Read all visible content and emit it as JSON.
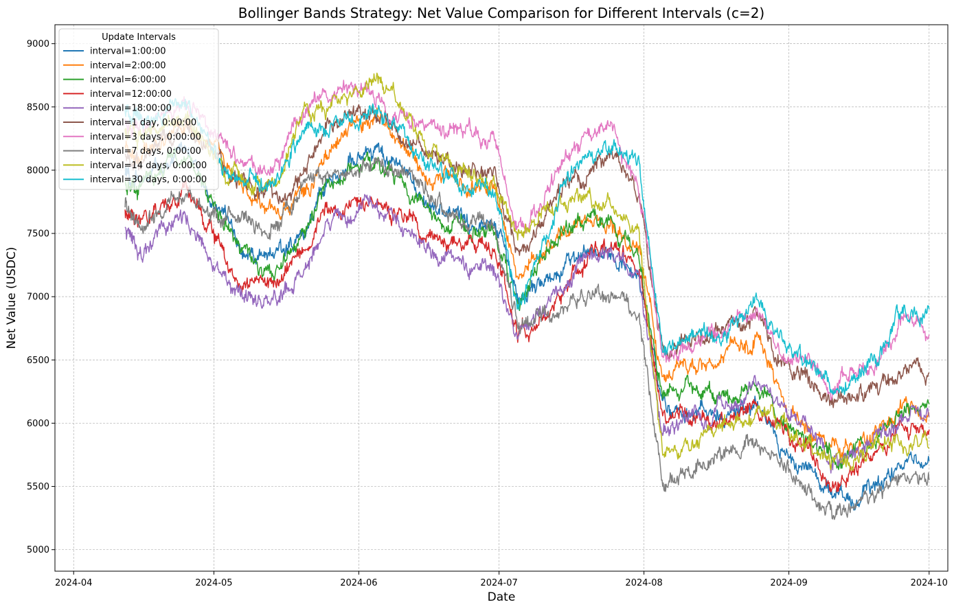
{
  "chart_data": {
    "type": "line",
    "title": "Bollinger Bands Strategy: Net Value Comparison for Different Intervals (c=2)",
    "xlabel": "Date",
    "ylabel": "Net Value (USDC)",
    "xlim": [
      "2024-03-28",
      "2024-10-05"
    ],
    "ylim": [
      4830,
      9150
    ],
    "x_ticks": [
      "2024-04",
      "2024-05",
      "2024-06",
      "2024-07",
      "2024-08",
      "2024-09",
      "2024-10"
    ],
    "y_ticks": [
      5000,
      5500,
      6000,
      6500,
      7000,
      7500,
      8000,
      8500,
      9000
    ],
    "grid": true,
    "legend": {
      "title": "Update Intervals",
      "placement": "top-left"
    },
    "x": [
      "2024-04-01",
      "2024-04-12",
      "2024-04-15",
      "2024-04-20",
      "2024-04-25",
      "2024-04-30",
      "2024-05-05",
      "2024-05-10",
      "2024-05-15",
      "2024-05-20",
      "2024-05-25",
      "2024-05-31",
      "2024-06-05",
      "2024-06-10",
      "2024-06-15",
      "2024-06-20",
      "2024-06-25",
      "2024-06-30",
      "2024-07-05",
      "2024-07-10",
      "2024-07-15",
      "2024-07-20",
      "2024-07-25",
      "2024-07-31",
      "2024-08-05",
      "2024-08-10",
      "2024-08-15",
      "2024-08-20",
      "2024-08-25",
      "2024-08-31",
      "2024-09-05",
      "2024-09-10",
      "2024-09-15",
      "2024-09-20",
      "2024-09-25",
      "2024-10-01"
    ],
    "series": [
      {
        "name": "interval=1:00:00",
        "color": "#1f77b4",
        "values": [
          null,
          8000,
          7900,
          8050,
          8150,
          7850,
          7500,
          7300,
          7350,
          7450,
          7900,
          8100,
          8150,
          8000,
          7750,
          7650,
          7550,
          7600,
          7000,
          7100,
          7250,
          7350,
          7300,
          7100,
          6150,
          6100,
          6050,
          6100,
          6150,
          5750,
          5650,
          5450,
          5400,
          5500,
          5650,
          5700
        ]
      },
      {
        "name": "interval=2:00:00",
        "color": "#ff7f0e",
        "values": [
          null,
          8200,
          8100,
          8250,
          8350,
          8200,
          7950,
          7800,
          7700,
          7800,
          8150,
          8350,
          8400,
          8200,
          8000,
          7950,
          7850,
          7900,
          7150,
          7350,
          7500,
          7600,
          7550,
          7350,
          6350,
          6450,
          6450,
          6550,
          6650,
          6150,
          5950,
          5800,
          5850,
          5900,
          6100,
          6050
        ]
      },
      {
        "name": "interval=6:00:00",
        "color": "#2ca02c",
        "values": [
          null,
          7900,
          7850,
          8000,
          8150,
          7800,
          7450,
          7250,
          7200,
          7500,
          7850,
          8000,
          8050,
          7900,
          7700,
          7600,
          7550,
          7500,
          6950,
          7300,
          7550,
          7650,
          7600,
          7300,
          6200,
          6300,
          6250,
          6200,
          6300,
          6000,
          5900,
          5700,
          5750,
          5850,
          6100,
          6150
        ]
      },
      {
        "name": "interval=12:00:00",
        "color": "#d62728",
        "values": [
          null,
          7650,
          7600,
          7700,
          7850,
          7550,
          7200,
          7100,
          7100,
          7350,
          7650,
          7750,
          7750,
          7650,
          7500,
          7450,
          7400,
          7350,
          6700,
          6850,
          7050,
          7300,
          7450,
          7250,
          6050,
          6100,
          6000,
          6050,
          6150,
          5900,
          5800,
          5500,
          5600,
          5750,
          5950,
          5950
        ]
      },
      {
        "name": "interval=18:00:00",
        "color": "#9467bd",
        "values": [
          null,
          7550,
          7350,
          7500,
          7650,
          7350,
          7000,
          6950,
          6950,
          7150,
          7550,
          7700,
          7750,
          7550,
          7350,
          7300,
          7250,
          7200,
          6700,
          6900,
          7100,
          7300,
          7350,
          7150,
          5950,
          6000,
          6050,
          6150,
          6300,
          6100,
          6000,
          5700,
          5750,
          5900,
          6100,
          6050
        ]
      },
      {
        "name": "interval=1 day, 0:00:00",
        "color": "#8c564b",
        "values": [
          null,
          8100,
          8050,
          8200,
          8350,
          8200,
          7950,
          7850,
          7800,
          7950,
          8300,
          8450,
          8400,
          8300,
          8100,
          8050,
          8000,
          7950,
          7300,
          7600,
          7900,
          8000,
          8150,
          7800,
          6550,
          6650,
          6700,
          6750,
          6850,
          6450,
          6350,
          6150,
          6200,
          6250,
          6450,
          6400
        ]
      },
      {
        "name": "interval=3 days, 0:00:00",
        "color": "#e377c2",
        "values": [
          null,
          8350,
          8300,
          8400,
          8500,
          8300,
          8100,
          8050,
          8050,
          8450,
          8600,
          8650,
          8600,
          8450,
          8350,
          8300,
          8300,
          8250,
          7500,
          7700,
          8100,
          8250,
          8350,
          7850,
          6550,
          6600,
          6650,
          6750,
          6850,
          6500,
          6450,
          6300,
          6400,
          6500,
          6800,
          6700
        ]
      },
      {
        "name": "interval=7 days, 0:00:00",
        "color": "#7f7f7f",
        "values": [
          null,
          7700,
          7600,
          7700,
          7800,
          7650,
          7600,
          7550,
          7550,
          7900,
          7950,
          7950,
          8050,
          8000,
          7850,
          7700,
          7600,
          7550,
          6800,
          6850,
          6900,
          7000,
          7050,
          6800,
          5500,
          5600,
          5700,
          5800,
          5850,
          5600,
          5500,
          5300,
          5350,
          5450,
          5600,
          5550
        ]
      },
      {
        "name": "interval=14 days, 0:00:00",
        "color": "#bcbd22",
        "values": [
          null,
          8300,
          8250,
          8350,
          8450,
          8150,
          7950,
          7900,
          7900,
          8450,
          8500,
          8600,
          8700,
          8550,
          8200,
          8050,
          7950,
          7900,
          7450,
          7700,
          7750,
          7750,
          7700,
          7500,
          5700,
          5850,
          5900,
          6000,
          6100,
          6000,
          5800,
          5750,
          5700,
          5850,
          5850,
          5800
        ]
      },
      {
        "name": "interval=30 days, 0:00:00",
        "color": "#17becf",
        "values": [
          null,
          8500,
          8400,
          8450,
          8550,
          8250,
          7950,
          7900,
          7950,
          8300,
          8350,
          8400,
          8450,
          8350,
          8100,
          7950,
          7900,
          7850,
          6900,
          7400,
          7900,
          8150,
          8150,
          8000,
          6600,
          6700,
          6650,
          6750,
          7000,
          6600,
          6500,
          6250,
          6350,
          6500,
          6900,
          6900
        ]
      }
    ]
  }
}
